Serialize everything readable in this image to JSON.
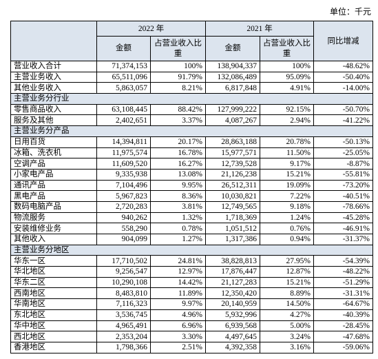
{
  "unit": "单位：千元",
  "table": {
    "header": [
      "2022 年",
      "2021 年",
      "同比增减"
    ],
    "subheader": [
      "金额",
      "占营业收入比重",
      "金额",
      "占营业收入比重"
    ],
    "rows": [
      [
        "营业收入合计",
        "71,374,153",
        "100%",
        "138,904,337",
        "100%",
        "-48.62%"
      ],
      [
        "主营业务收入",
        "65,511,096",
        "91.79%",
        "132,086,489",
        "95.09%",
        "-50.40%"
      ],
      [
        "其他业务收入",
        "5,863,057",
        "8.21%",
        "6,817,848",
        "4.91%",
        "-14.00%"
      ],
      [
        "主营业务分行业"
      ],
      [
        "零售商品收入",
        "63,108,445",
        "88.42%",
        "127,999,222",
        "92.15%",
        "-50.70%"
      ],
      [
        "服务及其他",
        "2,402,651",
        "3.37%",
        "4,087,267",
        "2.94%",
        "-41.22%"
      ],
      [
        "主营业务分产品"
      ],
      [
        "日用百货",
        "14,394,811",
        "20.17%",
        "28,863,188",
        "20.78%",
        "-50.13%"
      ],
      [
        "冰箱、洗衣机",
        "11,975,574",
        "16.78%",
        "15,977,571",
        "11.50%",
        "-25.05%"
      ],
      [
        "空调产品",
        "11,609,520",
        "16.27%",
        "12,739,528",
        "9.17%",
        "-8.87%"
      ],
      [
        "小家电产品",
        "9,335,938",
        "13.08%",
        "21,126,238",
        "15.21%",
        "-55.81%"
      ],
      [
        "通讯产品",
        "7,104,496",
        "9.95%",
        "26,512,311",
        "19.09%",
        "-73.20%"
      ],
      [
        "黑电产品",
        "5,967,823",
        "8.36%",
        "10,030,821",
        "7.22%",
        "-40.51%"
      ],
      [
        "数码电脑产品",
        "2,720,283",
        "3.81%",
        "12,749,565",
        "9.18%",
        "-78.66%"
      ],
      [
        "物流服务",
        "940,262",
        "1.32%",
        "1,718,369",
        "1.24%",
        "-45.28%"
      ],
      [
        "安装维修业务",
        "558,290",
        "0.78%",
        "1,051,512",
        "0.76%",
        "-46.91%"
      ],
      [
        "其他收入",
        "904,099",
        "1.27%",
        "1,317,386",
        "0.94%",
        "-31.37%"
      ],
      [
        "主营业务分地区"
      ],
      [
        "华东一区",
        "17,710,502",
        "24.81%",
        "38,828,813",
        "27.95%",
        "-54.39%"
      ],
      [
        "华北地区",
        "9,256,547",
        "12.97%",
        "17,876,447",
        "12.87%",
        "-48.22%"
      ],
      [
        "华东二区",
        "10,290,108",
        "14.42%",
        "21,127,283",
        "15.21%",
        "-51.29%"
      ],
      [
        "西南地区",
        "8,483,810",
        "11.89%",
        "12,350,420",
        "8.89%",
        "-31.31%"
      ],
      [
        "华南地区",
        "7,116,323",
        "9.97%",
        "20,140,959",
        "14.50%",
        "-64.67%"
      ],
      [
        "东北地区",
        "3,536,745",
        "4.96%",
        "5,932,996",
        "4.27%",
        "-40.39%"
      ],
      [
        "华中地区",
        "4,965,491",
        "6.96%",
        "6,939,568",
        "5.00%",
        "-28.45%"
      ],
      [
        "西北地区",
        "2,353,204",
        "3.30%",
        "4,497,645",
        "3.24%",
        "-47.68%"
      ],
      [
        "香港地区",
        "1,798,366",
        "2.51%",
        "4,392,358",
        "3.16%",
        "-59.06%"
      ]
    ]
  }
}
